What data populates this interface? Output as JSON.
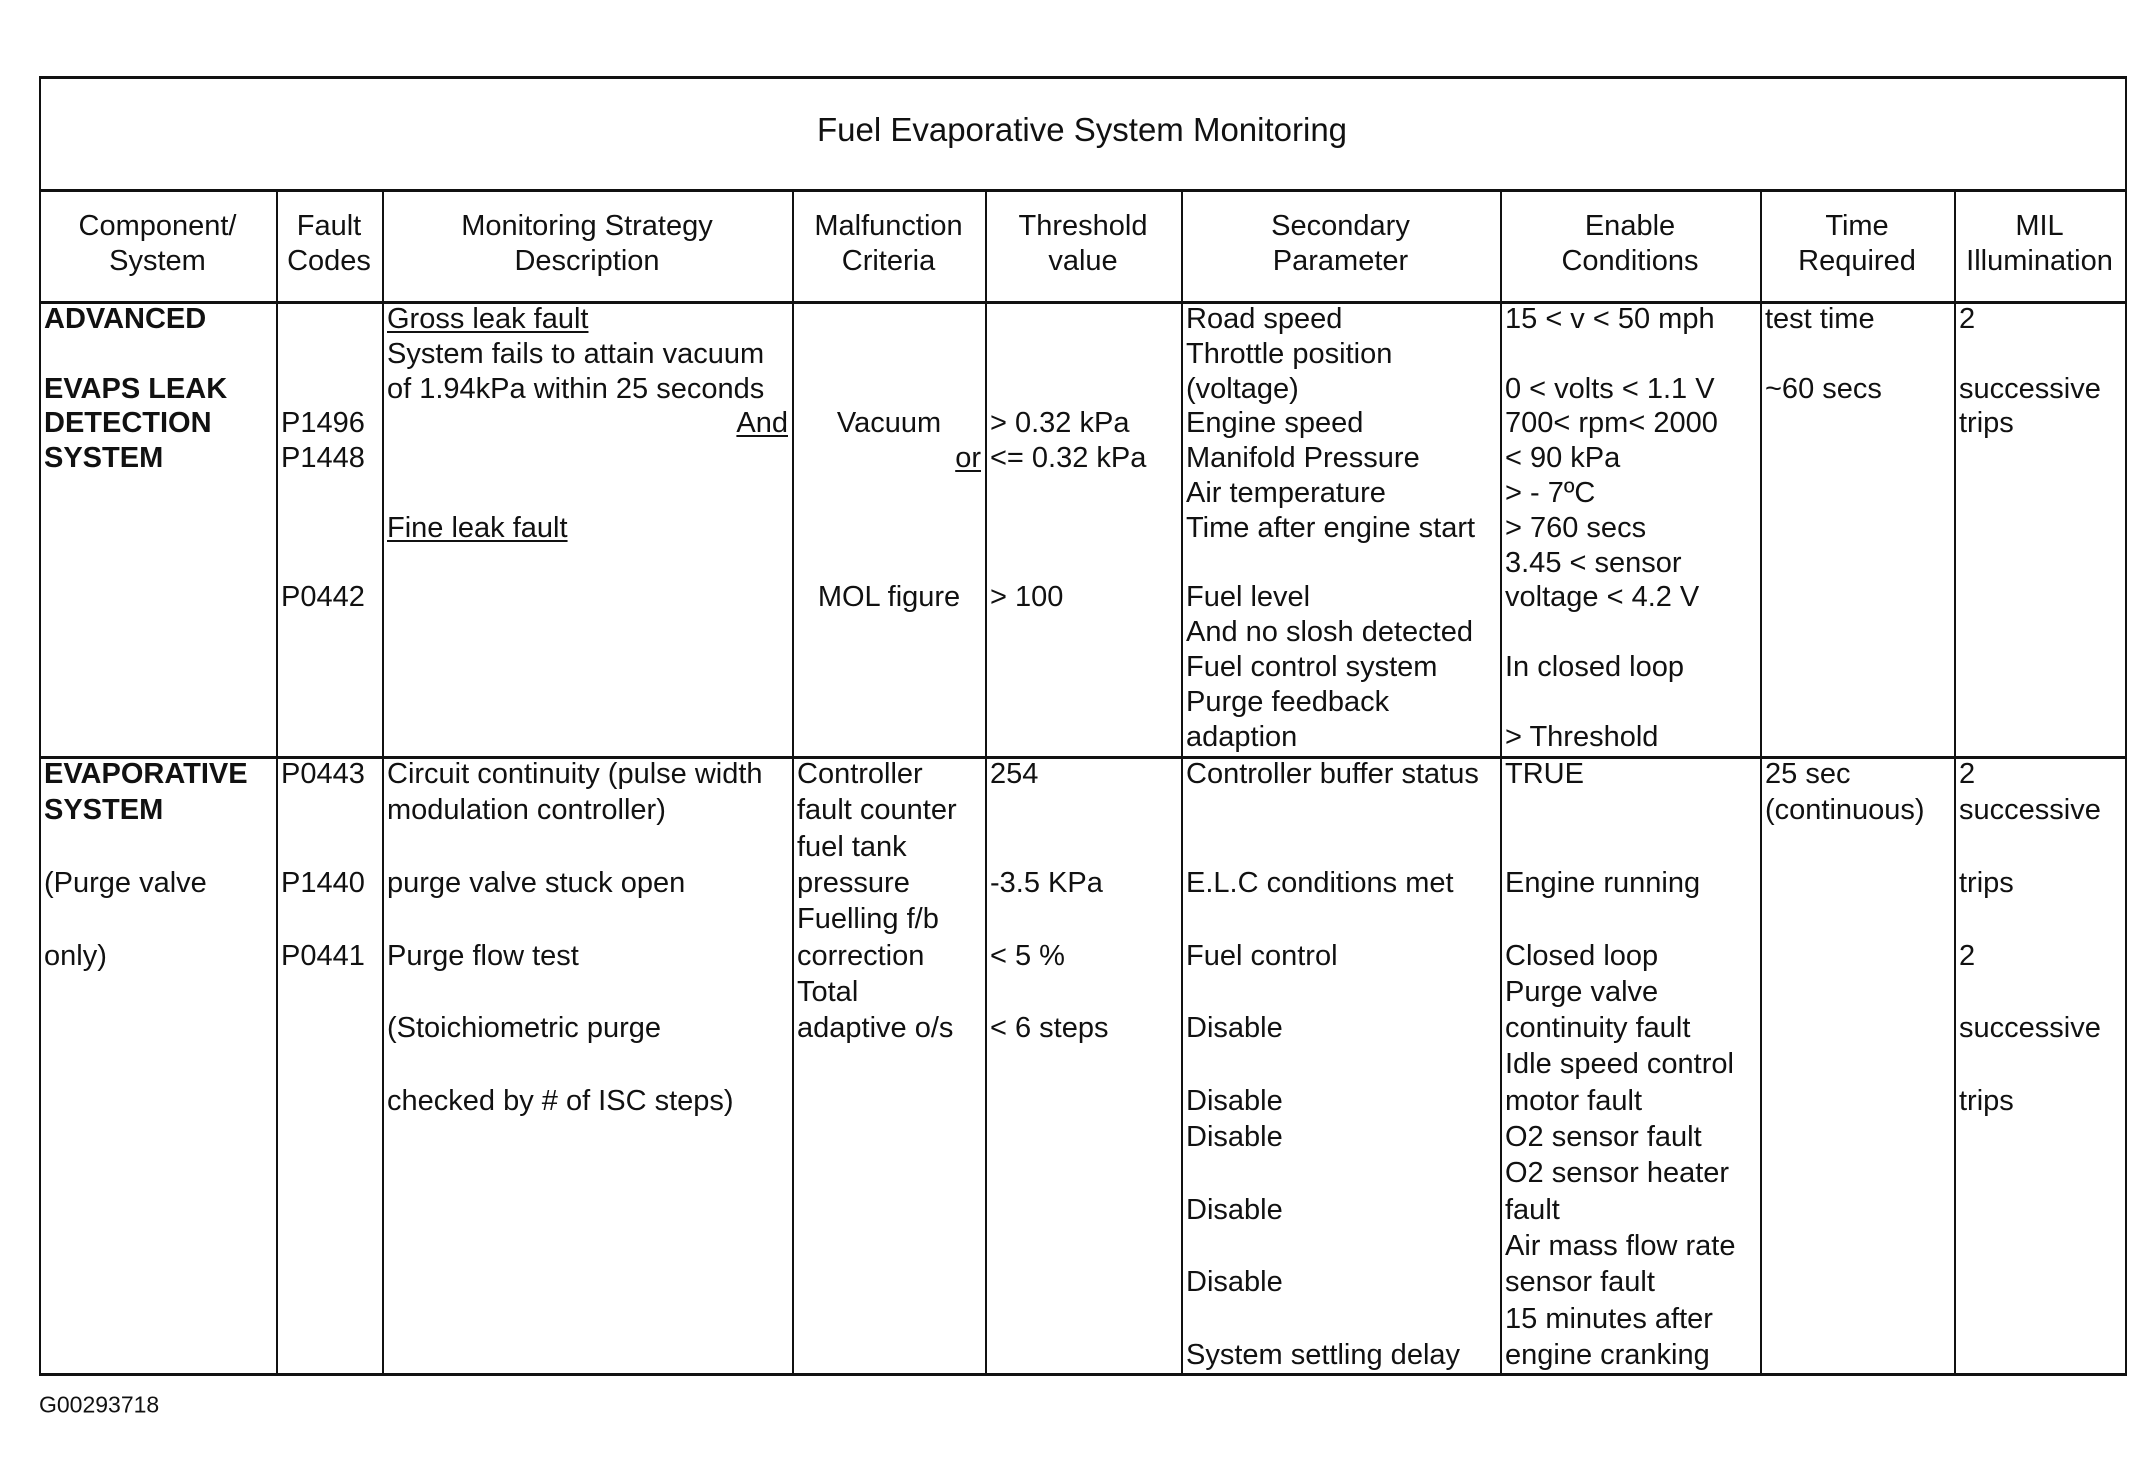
{
  "title": "Fuel Evaporative System Monitoring",
  "headers": [
    [
      "Component/",
      "System"
    ],
    [
      "Fault",
      "Codes"
    ],
    [
      "Monitoring Strategy",
      "Description"
    ],
    [
      "Malfunction",
      "Criteria"
    ],
    [
      "Threshold",
      "value"
    ],
    [
      "Secondary",
      "Parameter"
    ],
    [
      "Enable",
      "Conditions"
    ],
    [
      "Time",
      "Required"
    ],
    [
      "MIL",
      "Illumination"
    ]
  ],
  "rows": [
    {
      "cells": [
        [
          "ADVANCED",
          "",
          "EVAPS LEAK",
          "DETECTION",
          "SYSTEM"
        ],
        [
          "",
          "",
          "",
          "P1496",
          "P1448",
          "",
          "",
          "",
          "P0442"
        ],
        [
          "Gross leak fault",
          "System fails to attain vacuum",
          "of 1.94kPa within 25 seconds",
          "And",
          "",
          "",
          "Fine leak fault"
        ],
        [
          "",
          "",
          "",
          "Vacuum",
          "or",
          "",
          "",
          "",
          "MOL figure"
        ],
        [
          "",
          "",
          "",
          "> 0.32 kPa",
          "<= 0.32 kPa",
          "",
          "",
          "",
          "> 100"
        ],
        [
          "Road speed",
          "Throttle position",
          "(voltage)",
          "Engine speed",
          "Manifold Pressure",
          "Air temperature",
          "Time after engine start",
          "",
          "Fuel level",
          "And no slosh detected",
          "Fuel control system",
          "Purge feedback",
          "adaption"
        ],
        [
          "15 < v < 50 mph",
          "",
          "0 < volts < 1.1 V",
          "700< rpm< 2000",
          "< 90 kPa",
          "> - 7ºC",
          "> 760 secs",
          "3.45 < sensor",
          "voltage < 4.2 V",
          "",
          "In closed loop",
          "",
          "> Threshold"
        ],
        [
          "test time",
          "",
          "~60 secs"
        ],
        [
          "2",
          "",
          "successive",
          "trips"
        ]
      ]
    },
    {
      "cells": [
        [
          "EVAPORATIVE",
          "SYSTEM",
          "",
          "(Purge valve",
          "",
          "only)"
        ],
        [
          "P0443",
          "",
          "",
          "P1440",
          "",
          "P0441"
        ],
        [
          "Circuit continuity (pulse width",
          "modulation controller)",
          "",
          "purge valve stuck open",
          "",
          "Purge flow test",
          "",
          "(Stoichiometric purge",
          "",
          "checked by # of ISC steps)"
        ],
        [
          "Controller",
          "fault counter",
          "fuel tank",
          "pressure",
          "Fuelling f/b",
          "correction",
          "Total",
          "adaptive o/s"
        ],
        [
          "254",
          "",
          "",
          "-3.5 KPa",
          "",
          "< 5 %",
          "",
          "< 6 steps"
        ],
        [
          "Controller buffer status",
          "",
          "",
          "E.L.C conditions met",
          "",
          "Fuel control",
          "",
          "Disable",
          "",
          "Disable",
          "Disable",
          "",
          "Disable",
          "",
          "Disable",
          "",
          "System settling delay"
        ],
        [
          "TRUE",
          "",
          "",
          "Engine running",
          "",
          "Closed loop",
          "Purge valve",
          "continuity fault",
          "Idle speed control",
          "motor fault",
          "O2 sensor fault",
          "O2 sensor heater",
          "fault",
          "Air mass flow rate",
          "sensor fault",
          "15 minutes after",
          "engine cranking"
        ],
        [
          "25 sec",
          "(continuous)"
        ],
        [
          "2",
          "successive",
          "",
          "trips",
          "",
          "2",
          "",
          "successive",
          "",
          "trips"
        ]
      ]
    }
  ],
  "footer_id": "G00293718"
}
